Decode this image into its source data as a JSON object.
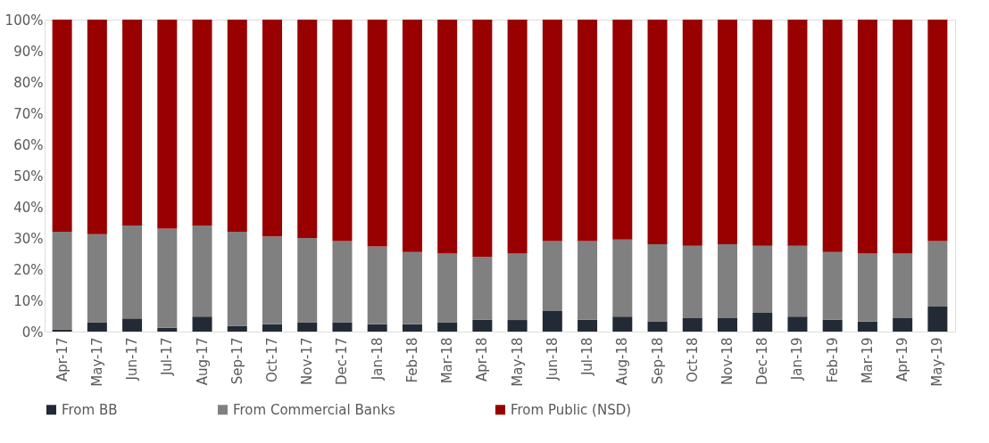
{
  "chart_data": {
    "type": "bar",
    "stacked": true,
    "legend": "bottom",
    "grid": false,
    "categories": [
      "Apr-17",
      "May-17",
      "Jun-17",
      "Jul-17",
      "Aug-17",
      "Sep-17",
      "Oct-17",
      "Nov-17",
      "Dec-17",
      "Jan-18",
      "Feb-18",
      "Mar-18",
      "Apr-18",
      "May-18",
      "Jun-18",
      "Jul-18",
      "Aug-18",
      "Sep-18",
      "Oct-18",
      "Nov-18",
      "Dec-18",
      "Jan-19",
      "Feb-19",
      "Mar-19",
      "Apr-19",
      "May-19"
    ],
    "ylim": [
      0,
      100
    ],
    "yticks": [
      {
        "value": 0,
        "label": "0%"
      },
      {
        "value": 10,
        "label": "10%"
      },
      {
        "value": 20,
        "label": "20%"
      },
      {
        "value": 30,
        "label": "30%"
      },
      {
        "value": 40,
        "label": "40%"
      },
      {
        "value": 50,
        "label": "50%"
      },
      {
        "value": 60,
        "label": "60%"
      },
      {
        "value": 70,
        "label": "70%"
      },
      {
        "value": 80,
        "label": "80%"
      },
      {
        "value": 90,
        "label": "90%"
      },
      {
        "value": 100,
        "label": "100%"
      }
    ],
    "series": [
      {
        "name": "From BB",
        "color": "#222a35",
        "values": [
          0.7,
          3,
          4.2,
          1.2,
          4.8,
          1.8,
          2.4,
          3,
          3,
          2.4,
          2.4,
          3,
          3.8,
          3.7,
          6.6,
          3.8,
          4.8,
          3.3,
          4.3,
          4.3,
          6,
          4.8,
          3.8,
          3.2,
          4.3,
          8
        ]
      },
      {
        "name": "From Commercial Banks",
        "color": "#808080",
        "values": [
          31.3,
          28.2,
          29.8,
          31.8,
          29.2,
          30.2,
          28.1,
          27,
          26,
          24.9,
          23.1,
          22,
          20.2,
          21.3,
          22.4,
          25.2,
          24.7,
          24.7,
          23.2,
          23.7,
          21.5,
          22.7,
          21.7,
          21.8,
          20.7,
          21
        ]
      },
      {
        "name": "From Public (NSD)",
        "color": "#990000",
        "values": [
          68,
          68.8,
          66,
          67,
          66,
          68,
          69.5,
          70,
          71,
          72.7,
          74.5,
          75,
          76,
          75,
          71,
          71,
          70.5,
          72,
          72.5,
          72,
          72.5,
          72.5,
          74.5,
          75,
          75,
          71
        ]
      }
    ]
  }
}
